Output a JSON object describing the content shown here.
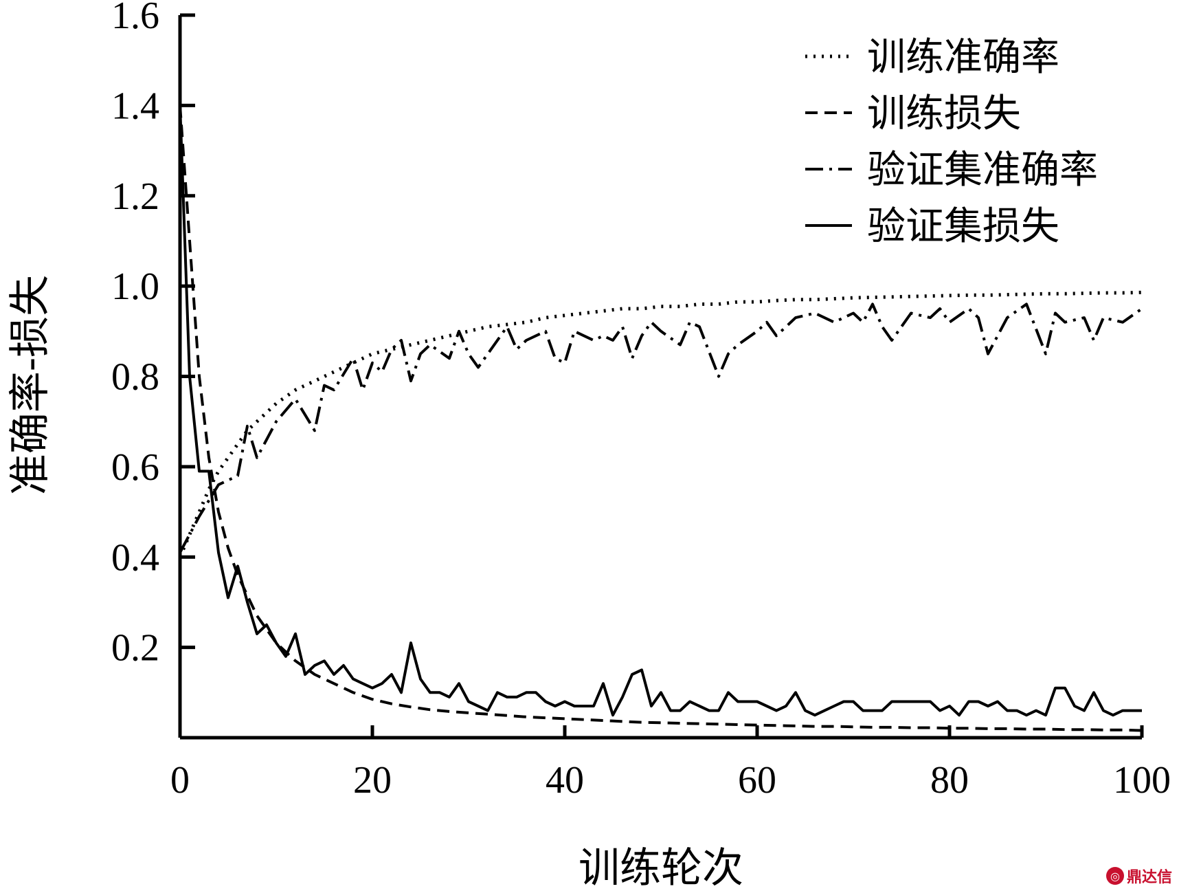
{
  "chart_data": {
    "type": "line",
    "xlabel": "训练轮次",
    "ylabel": "准确率-损失",
    "xlim": [
      0,
      100
    ],
    "ylim": [
      0,
      1.6
    ],
    "x_ticks": [
      "0",
      "20",
      "40",
      "60",
      "80",
      "100"
    ],
    "y_ticks": [
      "0.2",
      "0.4",
      "0.6",
      "0.8",
      "1.0",
      "1.2",
      "1.4",
      "1.6"
    ],
    "grid": false,
    "legend_position": "top-right",
    "series": [
      {
        "name": "训练准确率",
        "style": "dotted",
        "x": [
          0,
          1,
          2,
          3,
          4,
          5,
          6,
          7,
          8,
          10,
          12,
          14,
          16,
          18,
          20,
          22,
          24,
          26,
          28,
          30,
          32,
          34,
          36,
          38,
          40,
          42,
          44,
          46,
          48,
          50,
          52,
          54,
          56,
          58,
          60,
          62,
          64,
          66,
          68,
          70,
          72,
          74,
          76,
          78,
          80,
          82,
          84,
          86,
          88,
          90,
          92,
          94,
          96,
          98,
          100
        ],
        "y": [
          0.4,
          0.45,
          0.5,
          0.55,
          0.59,
          0.62,
          0.65,
          0.68,
          0.7,
          0.74,
          0.77,
          0.79,
          0.81,
          0.83,
          0.85,
          0.86,
          0.87,
          0.88,
          0.89,
          0.9,
          0.91,
          0.915,
          0.92,
          0.93,
          0.935,
          0.94,
          0.945,
          0.95,
          0.95,
          0.955,
          0.955,
          0.96,
          0.96,
          0.965,
          0.965,
          0.968,
          0.97,
          0.97,
          0.972,
          0.974,
          0.975,
          0.976,
          0.977,
          0.978,
          0.979,
          0.98,
          0.98,
          0.981,
          0.982,
          0.983,
          0.983,
          0.984,
          0.985,
          0.985,
          0.986
        ]
      },
      {
        "name": "训练损失",
        "style": "dashed",
        "x": [
          0,
          1,
          2,
          3,
          4,
          5,
          6,
          8,
          10,
          12,
          14,
          16,
          18,
          20,
          22,
          24,
          26,
          28,
          30,
          32,
          34,
          36,
          38,
          40,
          42,
          44,
          46,
          48,
          50,
          52,
          54,
          56,
          58,
          60,
          62,
          64,
          66,
          68,
          70,
          72,
          74,
          76,
          78,
          80,
          82,
          84,
          86,
          88,
          90,
          92,
          94,
          96,
          98,
          100
        ],
        "y": [
          1.4,
          1.1,
          0.8,
          0.62,
          0.5,
          0.42,
          0.36,
          0.27,
          0.21,
          0.17,
          0.14,
          0.12,
          0.1,
          0.085,
          0.075,
          0.068,
          0.062,
          0.058,
          0.055,
          0.052,
          0.049,
          0.046,
          0.044,
          0.042,
          0.04,
          0.038,
          0.036,
          0.034,
          0.033,
          0.032,
          0.031,
          0.03,
          0.029,
          0.028,
          0.027,
          0.026,
          0.025,
          0.025,
          0.024,
          0.023,
          0.023,
          0.022,
          0.022,
          0.021,
          0.021,
          0.02,
          0.02,
          0.019,
          0.019,
          0.018,
          0.018,
          0.017,
          0.017,
          0.016
        ]
      },
      {
        "name": "验证集准确率",
        "style": "dashdot",
        "x": [
          0,
          2,
          4,
          6,
          7,
          8,
          9,
          10,
          12,
          14,
          15,
          16,
          18,
          19,
          20,
          21,
          22,
          23,
          24,
          25,
          26,
          28,
          29,
          30,
          31,
          32,
          34,
          35,
          36,
          38,
          39,
          40,
          41,
          42,
          43,
          44,
          45,
          46,
          47,
          48,
          49,
          50,
          52,
          53,
          54,
          56,
          57,
          58,
          60,
          61,
          62,
          64,
          66,
          68,
          70,
          71,
          72,
          73,
          74,
          76,
          78,
          79,
          80,
          82,
          83,
          84,
          86,
          88,
          90,
          91,
          92,
          94,
          95,
          96,
          98,
          100
        ],
        "y": [
          0.41,
          0.49,
          0.56,
          0.58,
          0.69,
          0.62,
          0.66,
          0.7,
          0.75,
          0.68,
          0.78,
          0.77,
          0.84,
          0.77,
          0.83,
          0.81,
          0.86,
          0.88,
          0.79,
          0.85,
          0.87,
          0.84,
          0.9,
          0.85,
          0.82,
          0.85,
          0.91,
          0.86,
          0.88,
          0.9,
          0.84,
          0.83,
          0.9,
          0.89,
          0.88,
          0.89,
          0.88,
          0.91,
          0.84,
          0.89,
          0.92,
          0.9,
          0.87,
          0.92,
          0.91,
          0.8,
          0.85,
          0.87,
          0.9,
          0.92,
          0.89,
          0.93,
          0.94,
          0.92,
          0.94,
          0.92,
          0.96,
          0.91,
          0.88,
          0.94,
          0.93,
          0.95,
          0.92,
          0.95,
          0.93,
          0.85,
          0.93,
          0.96,
          0.85,
          0.94,
          0.92,
          0.93,
          0.88,
          0.93,
          0.92,
          0.95
        ]
      },
      {
        "name": "验证集损失",
        "style": "solid",
        "x": [
          0,
          1,
          2,
          3,
          4,
          5,
          6,
          7,
          8,
          9,
          10,
          11,
          12,
          13,
          14,
          15,
          16,
          17,
          18,
          19,
          20,
          21,
          22,
          23,
          24,
          25,
          26,
          27,
          28,
          29,
          30,
          31,
          32,
          33,
          34,
          35,
          36,
          37,
          38,
          39,
          40,
          41,
          42,
          43,
          44,
          45,
          46,
          47,
          48,
          49,
          50,
          51,
          52,
          53,
          54,
          55,
          56,
          57,
          58,
          59,
          60,
          61,
          62,
          63,
          64,
          65,
          66,
          67,
          68,
          69,
          70,
          71,
          72,
          73,
          74,
          75,
          76,
          77,
          78,
          79,
          80,
          81,
          82,
          83,
          84,
          85,
          86,
          87,
          88,
          89,
          90,
          91,
          92,
          93,
          94,
          95,
          96,
          97,
          98,
          99,
          100
        ],
        "y": [
          1.4,
          0.8,
          0.59,
          0.59,
          0.41,
          0.31,
          0.38,
          0.3,
          0.23,
          0.25,
          0.21,
          0.18,
          0.23,
          0.14,
          0.16,
          0.17,
          0.14,
          0.16,
          0.13,
          0.12,
          0.11,
          0.12,
          0.14,
          0.1,
          0.21,
          0.13,
          0.1,
          0.1,
          0.09,
          0.12,
          0.08,
          0.07,
          0.06,
          0.1,
          0.09,
          0.09,
          0.1,
          0.1,
          0.08,
          0.07,
          0.08,
          0.07,
          0.07,
          0.07,
          0.12,
          0.05,
          0.09,
          0.14,
          0.15,
          0.07,
          0.1,
          0.06,
          0.06,
          0.08,
          0.07,
          0.06,
          0.06,
          0.1,
          0.08,
          0.08,
          0.08,
          0.07,
          0.06,
          0.07,
          0.1,
          0.06,
          0.05,
          0.06,
          0.07,
          0.08,
          0.08,
          0.06,
          0.06,
          0.06,
          0.08,
          0.08,
          0.08,
          0.08,
          0.08,
          0.06,
          0.07,
          0.05,
          0.08,
          0.08,
          0.07,
          0.08,
          0.06,
          0.06,
          0.05,
          0.06,
          0.05,
          0.11,
          0.11,
          0.07,
          0.06,
          0.1,
          0.06,
          0.05,
          0.06,
          0.06,
          0.06
        ]
      }
    ]
  },
  "watermark": {
    "text": "鼎达信",
    "color": "#c8102e"
  }
}
